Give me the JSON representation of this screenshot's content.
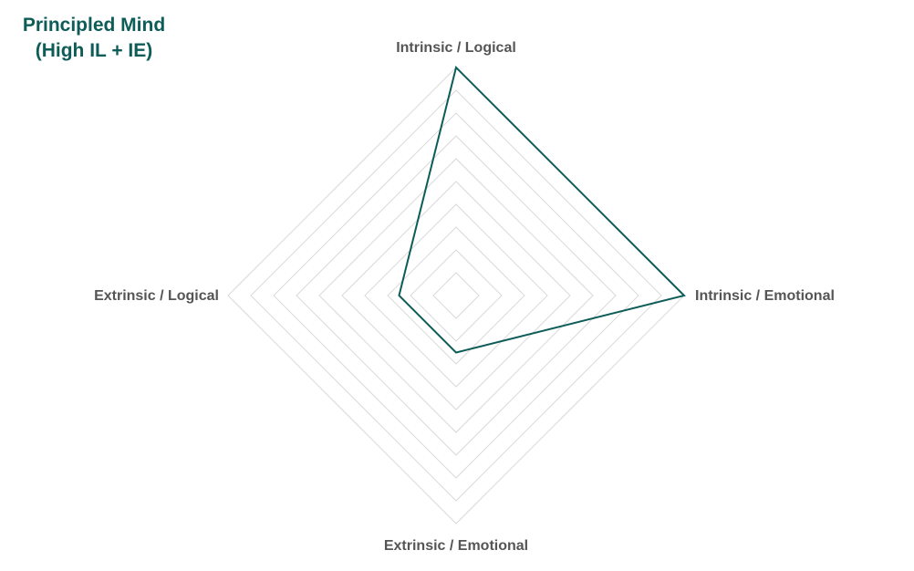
{
  "chart_data": {
    "type": "radar",
    "title": [
      "Principled Mind",
      "(High IL + IE)"
    ],
    "axes": [
      "Intrinsic / Logical",
      "Intrinsic / Emotional",
      "Extrinsic / Emotional",
      "Extrinsic / Logical"
    ],
    "values": [
      10,
      10,
      2.5,
      2.5
    ],
    "rlim": [
      0,
      10
    ],
    "grid_rings": 10,
    "grid": true,
    "legend": "none",
    "colors": {
      "series": "#0d5c58",
      "grid": "#d9d9d9",
      "labels": "#555555",
      "title": "#0d5c58"
    }
  }
}
